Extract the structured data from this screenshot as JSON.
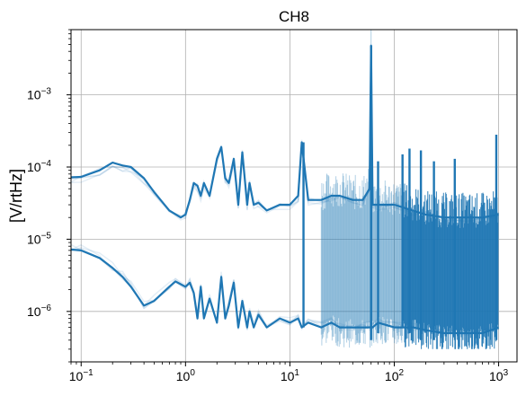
{
  "chart_data": {
    "type": "line",
    "title": "CH8",
    "xlabel": "",
    "ylabel": "[V/rtHz]",
    "x_scale": "log",
    "y_scale": "log",
    "xlim": [
      0.08,
      1500
    ],
    "ylim": [
      2e-07,
      0.008
    ],
    "grid": true,
    "legend": "none",
    "line_color": "#1f77b4",
    "x_ticks": [
      {
        "value": 0.1,
        "base": "10",
        "exp": "−1"
      },
      {
        "value": 1,
        "base": "10",
        "exp": "0"
      },
      {
        "value": 10,
        "base": "10",
        "exp": "1"
      },
      {
        "value": 100,
        "base": "10",
        "exp": "2"
      },
      {
        "value": 1000,
        "base": "10",
        "exp": "3"
      }
    ],
    "y_ticks": [
      {
        "value": 1e-06,
        "base": "10",
        "exp": "−6"
      },
      {
        "value": 1e-05,
        "base": "10",
        "exp": "−5"
      },
      {
        "value": 0.0001,
        "base": "10",
        "exp": "−4"
      },
      {
        "value": 0.001,
        "base": "10",
        "exp": "−3"
      }
    ],
    "series": [
      {
        "band": "upper",
        "x": [
          0.08,
          0.1,
          0.15,
          0.2,
          0.25,
          0.3,
          0.4,
          0.5,
          0.7,
          0.9,
          1.0,
          1.1,
          1.2,
          1.3,
          1.4,
          1.5,
          1.7,
          2.0,
          2.2,
          2.4,
          2.6,
          2.9,
          3.2,
          3.5,
          3.9,
          4.1,
          4.5,
          5,
          6,
          8,
          10,
          12,
          13,
          15,
          20,
          25,
          30,
          40,
          50,
          58,
          60,
          62,
          70,
          100,
          150,
          200,
          300,
          500,
          700,
          1000
        ],
        "y": [
          7.2e-05,
          7.3e-05,
          9e-05,
          0.000115,
          0.000105,
          0.0001,
          7e-05,
          4.5e-05,
          2.5e-05,
          2e-05,
          2.2e-05,
          3.5e-05,
          6e-05,
          5.5e-05,
          4e-05,
          6e-05,
          4e-05,
          0.00013,
          0.00019,
          7e-05,
          6e-05,
          0.00013,
          3e-05,
          0.00016,
          3e-05,
          6e-05,
          3e-05,
          3.2e-05,
          2.5e-05,
          3e-05,
          3e-05,
          4e-05,
          0.00022,
          3.5e-05,
          3.5e-05,
          4e-05,
          4e-05,
          3.5e-05,
          3.5e-05,
          5e-05,
          0.0048,
          3e-05,
          3e-05,
          3e-05,
          2.5e-05,
          2.2e-05,
          2e-05,
          2e-05,
          2e-05,
          2.2e-05
        ]
      },
      {
        "band": "lower",
        "x": [
          0.08,
          0.1,
          0.15,
          0.2,
          0.25,
          0.3,
          0.4,
          0.5,
          0.7,
          0.8,
          1.0,
          1.1,
          1.2,
          1.3,
          1.4,
          1.5,
          1.7,
          2.0,
          2.2,
          2.4,
          2.6,
          2.9,
          3.2,
          3.5,
          3.9,
          4.1,
          4.5,
          5,
          6,
          8,
          10,
          12,
          13,
          15,
          20,
          25,
          30,
          40,
          50,
          58,
          60,
          62,
          70,
          100,
          150,
          200,
          300,
          500,
          700,
          1000
        ],
        "y": [
          7.2e-06,
          7e-06,
          5.5e-06,
          4e-06,
          3e-06,
          2.2e-06,
          1.2e-06,
          1.4e-06,
          2.2e-06,
          2.6e-06,
          2.2e-06,
          2.5e-06,
          1.8e-06,
          8e-07,
          2.2e-06,
          8e-07,
          1.5e-06,
          7e-07,
          3e-06,
          8e-07,
          1.2e-06,
          2.5e-06,
          6e-07,
          1.4e-06,
          6e-07,
          1e-06,
          6e-07,
          9e-07,
          6e-07,
          8e-07,
          7e-07,
          8e-07,
          6e-07,
          7e-07,
          6e-07,
          7e-07,
          6e-07,
          6e-07,
          6e-07,
          6e-07,
          6e-07,
          6e-07,
          7e-07,
          6e-07,
          6e-07,
          5.5e-07,
          5e-07,
          5e-07,
          5e-07,
          6e-07
        ]
      }
    ]
  }
}
